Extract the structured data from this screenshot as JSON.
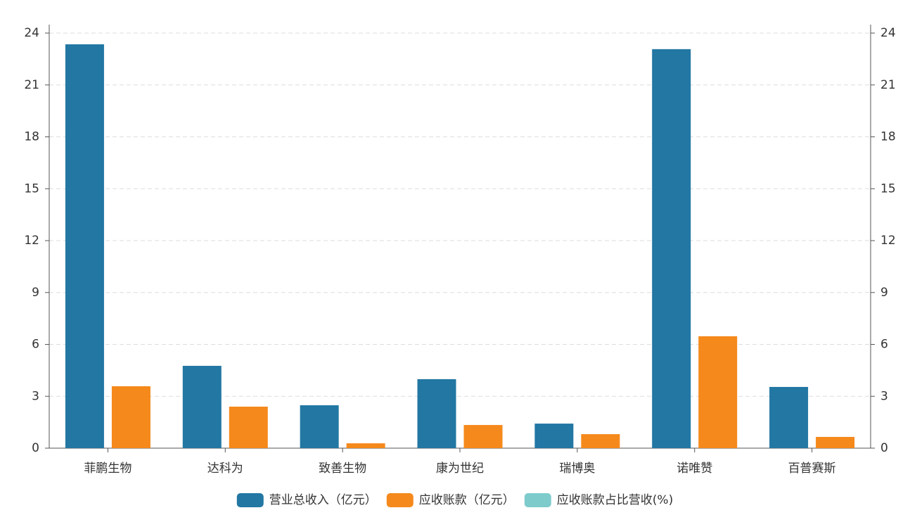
{
  "chart_data": {
    "type": "bar",
    "categories": [
      "菲鹏生物",
      "达科为",
      "致善生物",
      "康为世纪",
      "瑞博奥",
      "诺唯赞",
      "百普赛斯"
    ],
    "series": [
      {
        "name": "营业总收入（亿元）",
        "color": "#2277a3",
        "values": [
          23.35,
          4.76,
          2.48,
          3.99,
          1.42,
          23.07,
          3.54
        ]
      },
      {
        "name": "应收账款（亿元）",
        "color": "#f5891b",
        "values": [
          3.58,
          2.4,
          0.28,
          1.34,
          0.81,
          6.47,
          0.65
        ]
      },
      {
        "name": "应收账款占比营收(%)",
        "color": "#7ecbcc",
        "axis": "y2",
        "values": [
          null,
          null,
          null,
          null,
          null,
          null,
          null
        ]
      }
    ],
    "ylim": [
      0,
      24
    ],
    "yticks": [
      0,
      3,
      6,
      9,
      12,
      15,
      18,
      21,
      24
    ],
    "y2lim": [
      0,
      24
    ],
    "y2ticks": [
      0,
      3,
      6,
      9,
      12,
      15,
      18,
      21,
      24
    ],
    "grid": true,
    "legend": "bottom"
  }
}
